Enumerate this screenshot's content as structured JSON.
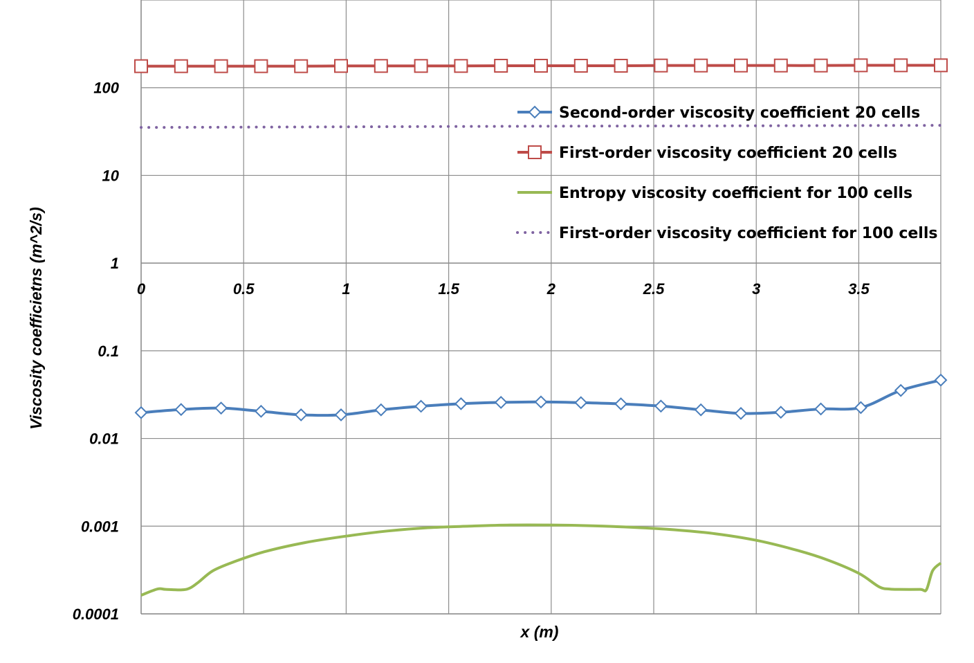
{
  "chart_data": {
    "type": "line",
    "title": "",
    "xlabel": "x (m)",
    "ylabel": "Viscosity coefficietns (m^2/s)",
    "yscale": "log",
    "xlim": [
      0,
      3.9
    ],
    "ylim": [
      0.0001,
      1000
    ],
    "grid": true,
    "legend_position": "top-right",
    "x_ticks": [
      "0",
      "0.5",
      "1",
      "1.5",
      "2",
      "2.5",
      "3",
      "3.5"
    ],
    "x_tick_values": [
      0,
      0.5,
      1,
      1.5,
      2,
      2.5,
      3,
      3.5
    ],
    "y_ticks": [
      "0.0001",
      "0.001",
      "0.01",
      "0.1",
      "1",
      "10",
      "100"
    ],
    "y_tick_values": [
      0.0001,
      0.001,
      0.01,
      0.1,
      1,
      10,
      100
    ],
    "x_axis_at_y": 1,
    "series": [
      {
        "name": "Second-order viscosity coefficient 20 cells",
        "color": "#4a7ebb",
        "marker": "diamond",
        "style": "solid",
        "x": [
          0,
          0.195,
          0.39,
          0.585,
          0.78,
          0.975,
          1.17,
          1.365,
          1.56,
          1.755,
          1.95,
          2.145,
          2.34,
          2.535,
          2.73,
          2.925,
          3.12,
          3.315,
          3.51,
          3.705,
          3.9
        ],
        "y": [
          0.0197,
          0.0214,
          0.0222,
          0.0204,
          0.0186,
          0.0186,
          0.0212,
          0.0233,
          0.0249,
          0.0258,
          0.0261,
          0.0256,
          0.0248,
          0.0234,
          0.0212,
          0.0193,
          0.0199,
          0.0217,
          0.0225,
          0.0353,
          0.0463
        ]
      },
      {
        "name": "First-order viscosity coefficient 20 cells",
        "color": "#be4b48",
        "marker": "square",
        "style": "solid",
        "x": [
          0,
          0.195,
          0.39,
          0.585,
          0.78,
          0.975,
          1.17,
          1.365,
          1.56,
          1.755,
          1.95,
          2.145,
          2.34,
          2.535,
          2.73,
          2.925,
          3.12,
          3.315,
          3.51,
          3.705,
          3.9
        ],
        "y": [
          176,
          176,
          176,
          176,
          176,
          177,
          177,
          177,
          177,
          178,
          178,
          178,
          178,
          179,
          179,
          179,
          179,
          179,
          180,
          180,
          180
        ]
      },
      {
        "name": "Entropy viscosity coefficient for 100 cells",
        "color": "#98b954",
        "marker": "none",
        "style": "solid",
        "x": [
          0,
          0.08,
          0.12,
          0.2,
          0.24,
          0.28,
          0.35,
          0.45,
          0.6,
          0.8,
          1.0,
          1.2,
          1.4,
          1.6,
          1.8,
          2.0,
          2.2,
          2.4,
          2.6,
          2.8,
          3.0,
          3.2,
          3.35,
          3.5,
          3.6,
          3.65,
          3.7,
          3.8,
          3.83,
          3.86,
          3.9
        ],
        "y": [
          0.000163,
          0.000192,
          0.00019,
          0.000188,
          0.000198,
          0.00023,
          0.00031,
          0.00039,
          0.00051,
          0.00065,
          0.00077,
          0.00088,
          0.00096,
          0.001,
          0.00103,
          0.00103,
          0.00101,
          0.00097,
          0.00091,
          0.00082,
          0.00069,
          0.00053,
          0.00041,
          0.00029,
          0.000203,
          0.000192,
          0.00019,
          0.00019,
          0.000189,
          0.00031,
          0.00038
        ]
      },
      {
        "name": "First-order viscosity coefficient for 100 cells",
        "color": "#7f63a1",
        "marker": "none",
        "style": "dotted",
        "x": [
          0,
          0.5,
          1.0,
          1.5,
          2.0,
          2.5,
          3.0,
          3.5,
          3.9
        ],
        "y": [
          35.2,
          35.5,
          35.8,
          36.1,
          36.4,
          36.6,
          36.8,
          37.0,
          37.2
        ]
      }
    ]
  }
}
